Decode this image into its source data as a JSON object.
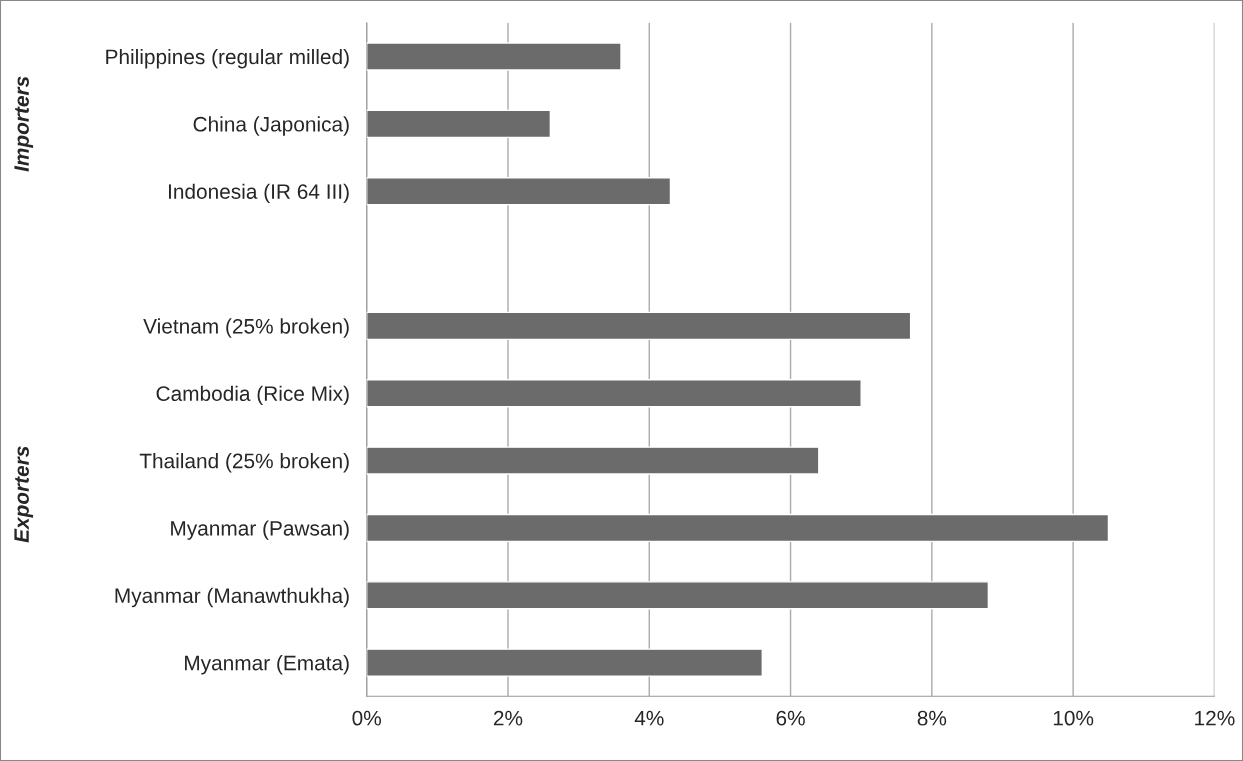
{
  "chart_data": {
    "type": "bar",
    "orientation": "horizontal",
    "categories": [
      "Philippines (regular milled)",
      "China (Japonica)",
      "Indonesia (IR 64 III)",
      null,
      "Vietnam (25% broken)",
      "Cambodia (Rice Mix)",
      "Thailand (25% broken)",
      "Myanmar (Pawsan)",
      "Myanmar (Manawthukha)",
      "Myanmar (Emata)"
    ],
    "values": [
      3.6,
      2.6,
      4.3,
      null,
      7.7,
      7.0,
      6.4,
      10.5,
      8.8,
      5.6
    ],
    "color": "#6b6b6b",
    "xlim": [
      0,
      12
    ],
    "xticks": [
      {
        "value": 0,
        "label": "0%"
      },
      {
        "value": 2,
        "label": "2%"
      },
      {
        "value": 4,
        "label": "4%"
      },
      {
        "value": 6,
        "label": "6%"
      },
      {
        "value": 8,
        "label": "8%"
      },
      {
        "value": 10,
        "label": "10%"
      },
      {
        "value": 12,
        "label": "12%"
      }
    ],
    "grid": "x",
    "annotations": [
      "Importers",
      "Exporters"
    ]
  }
}
